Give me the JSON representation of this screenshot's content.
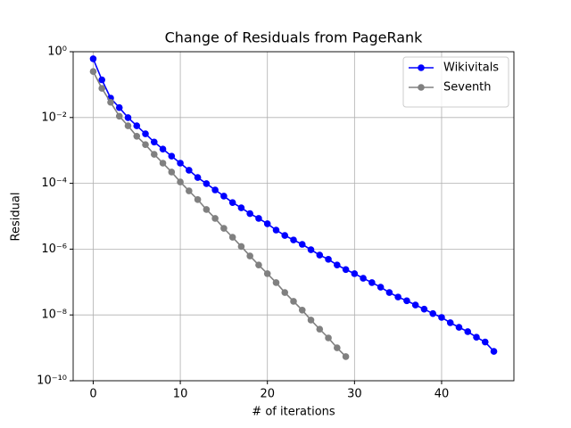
{
  "chart_data": {
    "type": "line",
    "title": "Change of Residuals from PageRank",
    "x_label": "# of iterations",
    "y_label": "Residual",
    "y_scale": "log",
    "grid": true,
    "legend_position": "upper right",
    "xlim": [
      -2.3,
      48.3
    ],
    "xticks": [
      0,
      10,
      20,
      30,
      40
    ],
    "ylim": [
      1e-10,
      1
    ],
    "yticks": [
      {
        "value": 1e-10,
        "label": "10⁻¹⁰"
      },
      {
        "value": 1e-08,
        "label": "10⁻⁸"
      },
      {
        "value": 1e-06,
        "label": "10⁻⁶"
      },
      {
        "value": 0.0001,
        "label": "10⁻⁴"
      },
      {
        "value": 0.01,
        "label": "10⁻²"
      },
      {
        "value": 1,
        "label": "10⁰"
      }
    ],
    "series": [
      {
        "name": "Wikivitals",
        "color": "#0000ff",
        "x": [
          0,
          1,
          2,
          3,
          4,
          5,
          6,
          7,
          8,
          9,
          10,
          11,
          12,
          13,
          14,
          15,
          16,
          17,
          18,
          19,
          20,
          21,
          22,
          23,
          24,
          25,
          26,
          27,
          28,
          29,
          30,
          31,
          32,
          33,
          34,
          35,
          36,
          37,
          38,
          39,
          40,
          41,
          42,
          43,
          44,
          45,
          46
        ],
        "values": [
          0.61,
          0.14,
          0.039,
          0.02,
          0.0099,
          0.0056,
          0.0032,
          0.0018,
          0.0011,
          0.00067,
          0.00041,
          0.00025,
          0.00015,
          9.8e-05,
          6.3e-05,
          4.1e-05,
          2.6e-05,
          1.8e-05,
          1.2e-05,
          8.6e-06,
          5.9e-06,
          3.8e-06,
          2.6e-06,
          1.9e-06,
          1.4e-06,
          9.6e-07,
          6.6e-07,
          4.9e-07,
          3.3e-07,
          2.4e-07,
          1.8e-07,
          1.3e-07,
          9.6e-08,
          7e-08,
          4.8e-08,
          3.5e-08,
          2.7e-08,
          2e-08,
          1.5e-08,
          1.1e-08,
          8.4e-09,
          5.8e-09,
          4.2e-09,
          3.1e-09,
          2.1e-09,
          1.5e-09,
          7.8e-10
        ]
      },
      {
        "name": "Seventh",
        "color": "#808080",
        "x": [
          0,
          1,
          2,
          3,
          4,
          5,
          6,
          7,
          8,
          9,
          10,
          11,
          12,
          13,
          14,
          15,
          16,
          17,
          18,
          19,
          20,
          21,
          22,
          23,
          24,
          25,
          26,
          27,
          28,
          29
        ],
        "values": [
          0.25,
          0.077,
          0.029,
          0.011,
          0.0056,
          0.0027,
          0.0015,
          0.00076,
          0.00041,
          0.00022,
          0.00011,
          5.9e-05,
          3.2e-05,
          1.6e-05,
          8.6e-06,
          4.3e-06,
          2.3e-06,
          1.2e-06,
          6.2e-07,
          3.3e-07,
          1.8e-07,
          9.6e-08,
          4.8e-08,
          2.6e-08,
          1.4e-08,
          7e-09,
          3.7e-09,
          2e-09,
          1e-09,
          5.4e-10
        ]
      }
    ]
  }
}
